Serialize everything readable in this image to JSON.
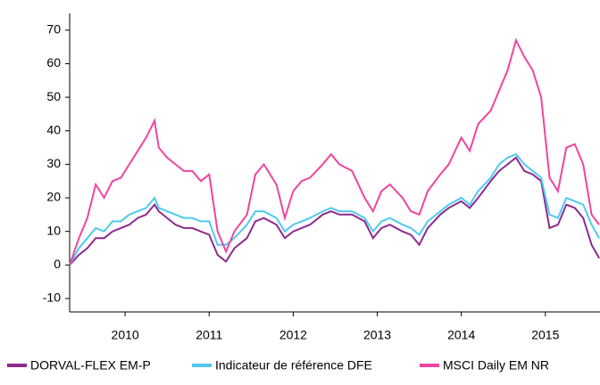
{
  "chart_data": {
    "type": "line",
    "x": [
      2009.84,
      2009.95,
      2010.05,
      2010.15,
      2010.25,
      2010.35,
      2010.45,
      2010.55,
      2010.65,
      2010.75,
      2010.85,
      2010.9,
      2011.0,
      2011.1,
      2011.2,
      2011.3,
      2011.4,
      2011.5,
      2011.6,
      2011.7,
      2011.8,
      2011.95,
      2012.05,
      2012.15,
      2012.3,
      2012.4,
      2012.5,
      2012.6,
      2012.7,
      2012.85,
      2012.95,
      2013.05,
      2013.2,
      2013.35,
      2013.45,
      2013.55,
      2013.65,
      2013.8,
      2013.9,
      2014.0,
      2014.1,
      2014.25,
      2014.35,
      2014.5,
      2014.6,
      2014.7,
      2014.85,
      2014.95,
      2015.05,
      2015.15,
      2015.25,
      2015.35,
      2015.45,
      2015.55,
      2015.65,
      2015.75,
      2015.85,
      2015.95,
      2016.05,
      2016.14
    ],
    "series": [
      {
        "name": "DORVAL-FLEX EM-P",
        "color": "#8e2a8e",
        "values": [
          0,
          3,
          5,
          8,
          8,
          10,
          11,
          12,
          14,
          15,
          18,
          16,
          14,
          12,
          11,
          11,
          10,
          9,
          3,
          1,
          5,
          8,
          13,
          14,
          12,
          8,
          10,
          11,
          12,
          15,
          16,
          15,
          15,
          13,
          8,
          11,
          12,
          10,
          9,
          6,
          11,
          15,
          17,
          19,
          17,
          20,
          25,
          28,
          30,
          32,
          28,
          27,
          25,
          11,
          12,
          18,
          17,
          14,
          6,
          2
        ]
      },
      {
        "name": "Indicateur de référence DFE",
        "color": "#4fc9ef",
        "values": [
          0,
          5,
          8,
          11,
          10,
          13,
          13,
          15,
          16,
          17,
          20,
          17,
          16,
          15,
          14,
          14,
          13,
          13,
          6,
          6,
          8,
          12,
          16,
          16,
          14,
          10,
          12,
          13,
          14,
          16,
          17,
          16,
          16,
          14,
          10,
          13,
          14,
          12,
          11,
          9,
          13,
          16,
          18,
          20,
          18,
          22,
          26,
          30,
          32,
          33,
          30,
          28,
          26,
          15,
          14,
          20,
          19,
          18,
          12,
          8
        ]
      },
      {
        "name": "MSCI Daily EM NR",
        "color": "#f0449e",
        "values": [
          0,
          8,
          14,
          24,
          20,
          25,
          26,
          30,
          34,
          38,
          43,
          35,
          32,
          30,
          28,
          28,
          25,
          27,
          10,
          4,
          10,
          15,
          27,
          30,
          24,
          14,
          22,
          25,
          26,
          30,
          33,
          30,
          28,
          20,
          16,
          22,
          24,
          20,
          16,
          15,
          22,
          27,
          30,
          38,
          34,
          42,
          46,
          52,
          58,
          67,
          62,
          58,
          50,
          26,
          22,
          35,
          36,
          30,
          15,
          12
        ]
      }
    ],
    "xlim": [
      2009.84,
      2016.15
    ],
    "xticks": [
      {
        "value": 2010.5,
        "label": "2010"
      },
      {
        "value": 2011.5,
        "label": "2011"
      },
      {
        "value": 2012.5,
        "label": "2012"
      },
      {
        "value": 2013.5,
        "label": "2013"
      },
      {
        "value": 2014.5,
        "label": "2014"
      },
      {
        "value": 2015.5,
        "label": "2015"
      }
    ],
    "ylim": [
      -14,
      75
    ],
    "yticks": [
      -10,
      0,
      10,
      20,
      30,
      40,
      50,
      60,
      70
    ]
  }
}
